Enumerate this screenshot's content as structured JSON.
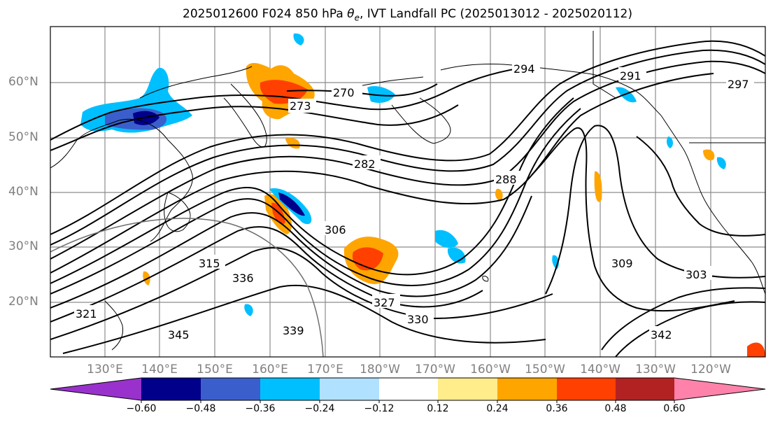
{
  "title": {
    "main": "2025012600 F024 850 hPa ",
    "theta": "θ",
    "theta_sub": "e",
    "rest": ", IVT Landfall PC (2025013012 - 2025020112)"
  },
  "lat_labels": [
    "60°N",
    "50°N",
    "40°N",
    "30°N",
    "20°N"
  ],
  "lon_labels": [
    "130°E",
    "140°E",
    "150°E",
    "160°E",
    "170°E",
    "180°W",
    "170°W",
    "160°W",
    "150°W",
    "140°W",
    "130°W",
    "120°W"
  ],
  "contour_labels": [
    "270",
    "273",
    "282",
    "288",
    "291",
    "294",
    "297",
    "303",
    "306",
    "309",
    "315",
    "321",
    "327",
    "330",
    "336",
    "339",
    "342",
    "345"
  ],
  "colorbar": {
    "tick_labels": [
      "−0.60",
      "−0.48",
      "−0.36",
      "−0.24",
      "−0.12",
      "0.12",
      "0.24",
      "0.36",
      "0.48",
      "0.60"
    ],
    "bins": [
      {
        "color": "#9932cc"
      },
      {
        "color": "#00008b"
      },
      {
        "color": "#3a5fcd"
      },
      {
        "color": "#00bfff"
      },
      {
        "color": "#b0e2ff"
      },
      {
        "color": "#ffffff"
      },
      {
        "color": "#ffec8b"
      },
      {
        "color": "#ffa500"
      },
      {
        "color": "#ff4000"
      },
      {
        "color": "#b22222"
      },
      {
        "color": "#ff82ab"
      }
    ]
  }
}
